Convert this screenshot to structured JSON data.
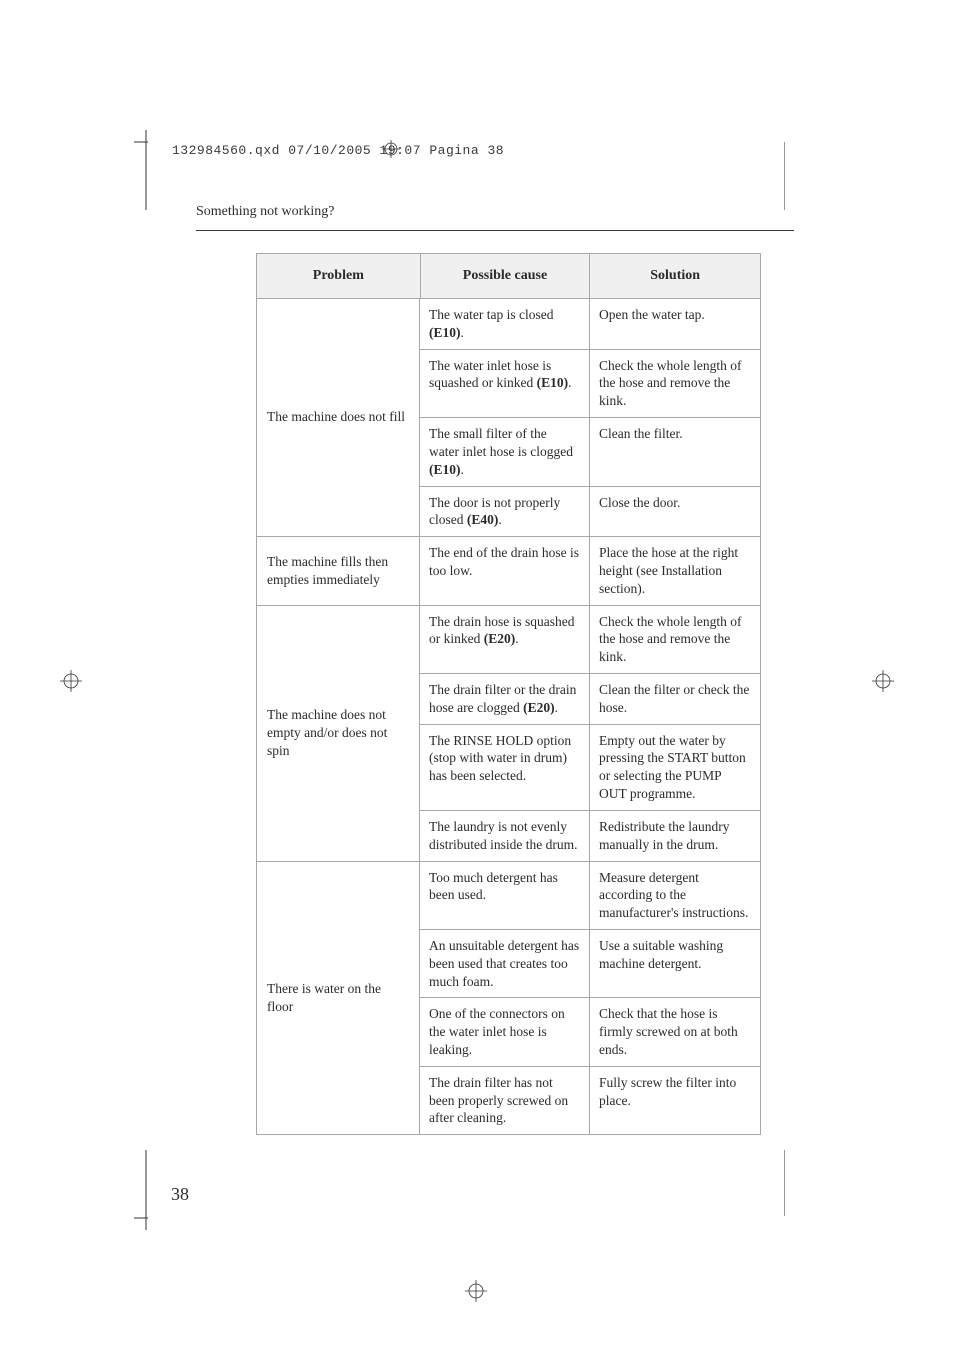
{
  "header_line": "132984560.qxd  07/10/2005  19:07  Pagina  38",
  "section_title": "Something not working?",
  "page_number": "38",
  "columns": {
    "problem": "Problem",
    "cause": "Possible cause",
    "solution": "Solution"
  },
  "groups": [
    {
      "problem": "The machine does not fill",
      "rows": [
        {
          "cause_pre": "The water tap is closed ",
          "ec": "(E10)",
          "cause_post": ".",
          "solution": "Open the water tap."
        },
        {
          "cause_pre": "The water inlet hose is squashed or kinked ",
          "ec": "(E10)",
          "cause_post": ".",
          "solution": "Check the whole length of the hose and remove the kink."
        },
        {
          "cause_pre": "The small filter of the water inlet hose is clogged ",
          "ec": "(E10)",
          "cause_post": ".",
          "solution": "Clean the filter."
        },
        {
          "cause_pre": "The door is not properly closed ",
          "ec": "(E40)",
          "cause_post": ".",
          "solution": "Close the door."
        }
      ]
    },
    {
      "problem": "The machine fills then empties immediately",
      "rows": [
        {
          "cause_pre": "The end of the drain hose is too low.",
          "ec": "",
          "cause_post": "",
          "solution": "Place the hose at the right height (see Installation section)."
        }
      ]
    },
    {
      "problem": "The machine does not empty and/or does not spin",
      "rows": [
        {
          "cause_pre": "The drain hose is squashed or kinked ",
          "ec": "(E20)",
          "cause_post": ".",
          "solution": "Check the whole length of the hose and remove the kink."
        },
        {
          "cause_pre": "The drain filter or the drain hose are clogged ",
          "ec": "(E20)",
          "cause_post": ".",
          "solution": "Clean the filter or check the hose."
        },
        {
          "cause_pre": "The RINSE HOLD option (stop with water in drum) has been selected.",
          "ec": "",
          "cause_post": "",
          "solution": "Empty out the water by pressing the START button or selecting the PUMP OUT programme."
        },
        {
          "cause_pre": "The laundry is not evenly distributed inside the drum.",
          "ec": "",
          "cause_post": "",
          "solution": "Redistribute the laundry manually in the drum."
        }
      ]
    },
    {
      "problem": "There is water on the floor",
      "rows": [
        {
          "cause_pre": "Too much detergent has been used.",
          "ec": "",
          "cause_post": "",
          "solution": "Measure detergent according to the manufacturer's instructions."
        },
        {
          "cause_pre": "An unsuitable detergent has been used that creates too much foam.",
          "ec": "",
          "cause_post": "",
          "solution": "Use a suitable washing machine detergent."
        },
        {
          "cause_pre": "One of the connectors on the water inlet hose is leaking.",
          "ec": "",
          "cause_post": "",
          "solution": "Check that the hose is firmly screwed on at both ends."
        },
        {
          "cause_pre": "The drain filter has not been properly screwed on after cleaning.",
          "ec": "",
          "cause_post": "",
          "solution": "Fully screw the filter into place."
        }
      ]
    }
  ],
  "style": {
    "page_bg": "#ffffff",
    "text_color": "#2b2b2b",
    "border_color": "#a8a8a8",
    "header_bg": "#f0f0f0",
    "body_font": "Georgia, 'Times New Roman', serif",
    "mono_font": "Courier, 'Courier New', monospace",
    "cell_fontsize": 13.5,
    "header_fontsize": 14
  }
}
